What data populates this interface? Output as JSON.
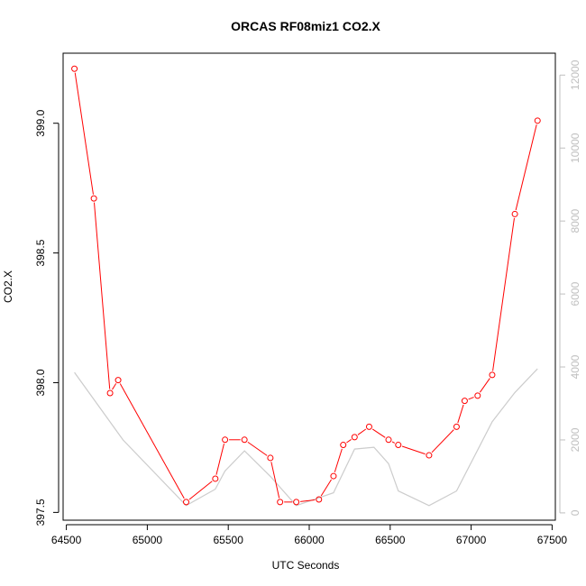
{
  "chart_data": {
    "type": "line",
    "title": "ORCAS RF08miz1 CO2.X",
    "xlabel": "UTC Seconds",
    "ylabel": "CO2.X",
    "xlim": [
      64480,
      67520
    ],
    "ylim": [
      397.47,
      399.27
    ],
    "y2lim": [
      -200,
      12600
    ],
    "x_ticks": [
      64500,
      65000,
      65500,
      66000,
      66500,
      67000,
      67500
    ],
    "y_ticks": [
      397.5,
      398.0,
      398.5,
      399.0
    ],
    "y_tick_labels": [
      "397.5",
      "398.0",
      "398.5",
      "399.0"
    ],
    "y2_ticks": [
      0,
      2000,
      4000,
      6000,
      8000,
      10000,
      12000
    ],
    "grid": false,
    "series": [
      {
        "axis": "left",
        "color": "#ff0000",
        "marker": "open-circle",
        "x": [
          64550,
          64670,
          64770,
          64820,
          65240,
          65420,
          65480,
          65600,
          65760,
          65820,
          65920,
          66060,
          66150,
          66210,
          66280,
          66370,
          66490,
          66550,
          66740,
          66910,
          66960,
          67040,
          67130,
          67270,
          67410
        ],
        "values": [
          399.21,
          398.71,
          397.96,
          398.01,
          397.54,
          397.63,
          397.78,
          397.78,
          397.71,
          397.54,
          397.54,
          397.55,
          397.64,
          397.76,
          397.79,
          397.83,
          397.78,
          397.76,
          397.72,
          397.83,
          397.93,
          397.95,
          398.03,
          398.65,
          399.01
        ]
      },
      {
        "axis": "right",
        "color": "#cccccc",
        "marker": "none",
        "x": [
          64550,
          64850,
          65240,
          65420,
          65480,
          65600,
          65760,
          65920,
          66150,
          66280,
          66400,
          66490,
          66550,
          66740,
          66910,
          67130,
          67270,
          67410
        ],
        "values": [
          3850,
          2000,
          200,
          650,
          1150,
          1700,
          1000,
          200,
          550,
          1750,
          1800,
          1350,
          600,
          200,
          600,
          2500,
          3300,
          3950
        ]
      }
    ]
  }
}
